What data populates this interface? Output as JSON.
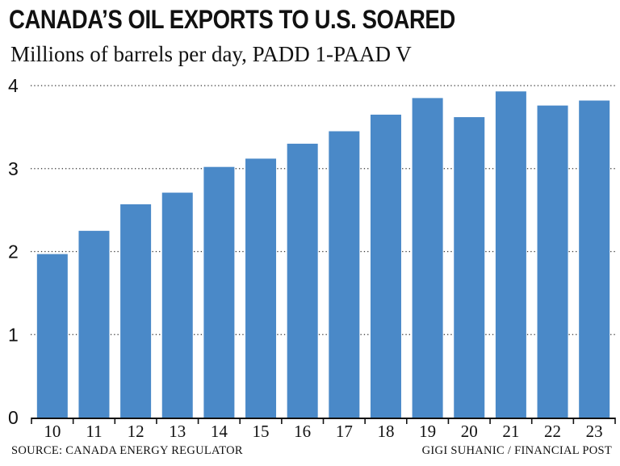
{
  "chart_data": {
    "type": "bar",
    "title": "CANADA’S OIL EXPORTS TO U.S. SOARED",
    "subtitle": "Millions of barrels per day, PADD 1-PAAD V",
    "categories": [
      "10",
      "11",
      "12",
      "13",
      "14",
      "15",
      "16",
      "17",
      "18",
      "19",
      "20",
      "21",
      "22",
      "23"
    ],
    "values": [
      1.97,
      2.25,
      2.57,
      2.71,
      3.02,
      3.12,
      3.3,
      3.45,
      3.65,
      3.85,
      3.62,
      3.93,
      3.76,
      3.82
    ],
    "ylim": [
      0,
      4
    ],
    "yticks": [
      "0",
      "1",
      "2",
      "3",
      "4"
    ],
    "grid": "horizontal dotted",
    "bar_color": "#4a89c8"
  },
  "footer": {
    "source": "SOURCE: CANADA ENERGY REGULATOR",
    "credit": "GIGI SUHANIC / FINANCIAL POST"
  }
}
